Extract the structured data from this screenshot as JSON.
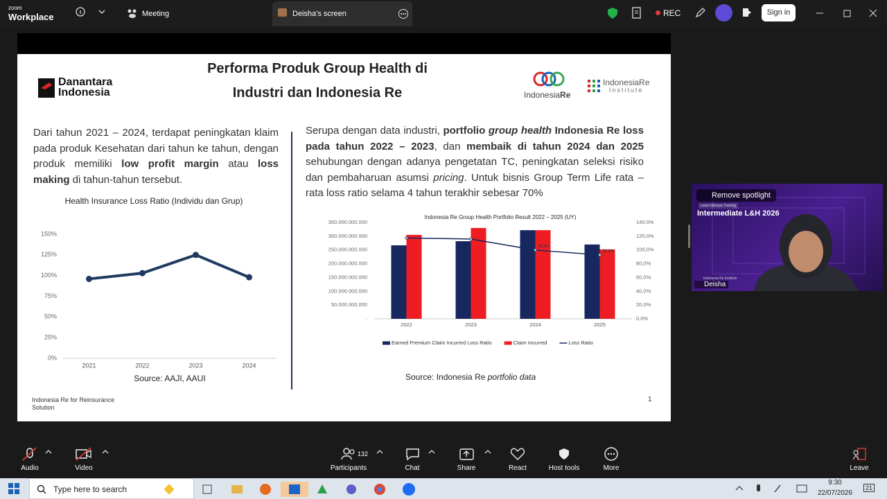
{
  "zoom_bar": {
    "logo_top": "zoom",
    "logo_bottom": "Workplace",
    "meeting": "Meeting",
    "tab": "Deisha's screen",
    "rec": "REC",
    "sign_in": "Sign in"
  },
  "slide": {
    "title_lines": [
      "Performa Produk Group Health di",
      "Industri dan Indonesia Re"
    ],
    "danantara": [
      "Danantara",
      "Indonesia"
    ],
    "indonesia_re": [
      "Indonesia",
      "Re"
    ],
    "institute": [
      "IndonesiaRe",
      "Institute"
    ],
    "left_paragraph": [
      "Dari tahun 2021 – 2024, terdapat peningkatan klaim pada produk Kesehatan dari tahun ke tahun, dengan produk memiliki ",
      "low profit margin",
      " atau ",
      "loss making",
      " di tahun-tahun tersebut."
    ],
    "right_paragraph": [
      "Serupa dengan data industri, ",
      "portfolio ",
      "group health",
      " Indonesia Re loss pada tahun 2022 – 2023",
      ", dan ",
      "membaik di tahun 2024 dan 2025",
      " sehubungan dengan adanya pengetatan TC, peningkatan seleksi risiko dan pembaharuan asumsi ",
      "pricing",
      ". Untuk bisnis Group Term Life rata – rata loss ratio selama 4 tahun terakhir sebesar 70%"
    ],
    "left_source": "Source: AAJI, AAUI",
    "right_source": [
      "Source: Indonesia Re ",
      "portfolio data"
    ],
    "footer": [
      "Indonesia Re for Reinsurance",
      "Solution"
    ],
    "page_number": "1"
  },
  "chart_data": [
    {
      "type": "line",
      "title": "Health Insurance Loss Ratio (Individu dan Grup)",
      "categories": [
        "2021",
        "2022",
        "2023",
        "2024"
      ],
      "values": [
        96,
        103,
        125,
        98
      ],
      "color": "#1f3a5f",
      "ylim": [
        0,
        150
      ],
      "yticks": [
        {
          "value": 0,
          "label": "0%"
        },
        {
          "value": 25,
          "label": "25%"
        },
        {
          "value": 50,
          "label": "50%"
        },
        {
          "value": 75,
          "label": "75%"
        },
        {
          "value": 100,
          "label": "100%"
        },
        {
          "value": 125,
          "label": "125%"
        },
        {
          "value": 150,
          "label": "150%"
        }
      ]
    },
    {
      "type": "bar",
      "title": "Indonesia Re Group Health Portfolio Result 2022 – 2025 (UY)",
      "categories": [
        "2022",
        "2023",
        "2024",
        "2025"
      ],
      "series": [
        {
          "name": "Earned Premium Claim Incurred Loss Ratio",
          "color": "#16285e",
          "values": [
            267000000000,
            282000000000,
            322000000000,
            270000000000
          ]
        },
        {
          "name": "Claim Incurred",
          "color": "#ee1d23",
          "values": [
            305000000000,
            330000000000,
            322000000000,
            252000000000
          ]
        },
        {
          "name": "Loss Ratio",
          "color": "#16285e",
          "type": "line",
          "axis": "y2",
          "values": [
            117.5,
            116,
            99.9,
            92.8
          ],
          "value_labels": [
            null,
            null,
            "99,9%",
            "92,8%"
          ]
        }
      ],
      "ylim": [
        0,
        350000000000
      ],
      "yticks": [
        {
          "value": 0,
          "label": "-"
        },
        {
          "value": 50000000000,
          "label": "50.000.000.000"
        },
        {
          "value": 100000000000,
          "label": "100.000.000.000"
        },
        {
          "value": 150000000000,
          "label": "150.000.000.000"
        },
        {
          "value": 200000000000,
          "label": "200.000.000.000"
        },
        {
          "value": 250000000000,
          "label": "250.000.000.000"
        },
        {
          "value": 300000000000,
          "label": "300.000.000.000"
        },
        {
          "value": 350000000000,
          "label": "350.000.000.000"
        }
      ],
      "y2lim": [
        0,
        140
      ],
      "y2ticks": [
        {
          "value": 0,
          "label": "0,0%"
        },
        {
          "value": 20,
          "label": "20,0%"
        },
        {
          "value": 40,
          "label": "40,0%"
        },
        {
          "value": 60,
          "label": "60,0%"
        },
        {
          "value": 80,
          "label": "80,0%"
        },
        {
          "value": 100,
          "label": "100,0%"
        },
        {
          "value": 120,
          "label": "120,0%"
        },
        {
          "value": 140,
          "label": "140,0%"
        }
      ]
    }
  ],
  "video": {
    "remove_spotlight": "Remove spotlight",
    "training": "Learn Inhouse Training",
    "event": "Intermediate L&H 2026",
    "institute": "Indonesia Re Institute",
    "name": "Deisha"
  },
  "toolbar": {
    "audio": "Audio",
    "video": "Video",
    "participant_count": "132",
    "participants": "Participants",
    "chat": "Chat",
    "share": "Share",
    "react": "React",
    "host_tools": "Host tools",
    "more": "More",
    "leave": "Leave"
  },
  "taskbar": {
    "search": "Type here to search",
    "time": "9:30",
    "date": "22/07/2026",
    "notifications": "21"
  }
}
